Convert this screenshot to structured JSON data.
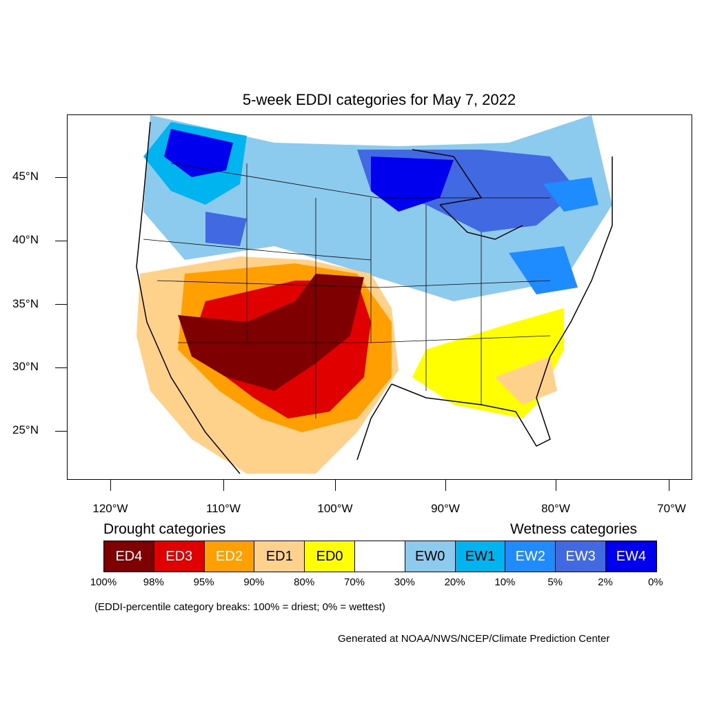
{
  "title": "5-week EDDI categories for May 7, 2022",
  "map": {
    "lat_labels": [
      "45°N",
      "40°N",
      "35°N",
      "30°N",
      "25°N"
    ],
    "lon_labels": [
      "120°W",
      "110°W",
      "100°W",
      "90°W",
      "80°W",
      "70°W"
    ]
  },
  "legend": {
    "drought_heading": "Drought categories",
    "wetness_heading": "Wetness categories",
    "categories": [
      {
        "label": "ED4",
        "color": "#7f0000",
        "text_color": "#ffffff"
      },
      {
        "label": "ED3",
        "color": "#e00000",
        "text_color": "#ffffff"
      },
      {
        "label": "ED2",
        "color": "#ff9f00",
        "text_color": "#ffffff"
      },
      {
        "label": "ED1",
        "color": "#ffd28c",
        "text_color": "#000000"
      },
      {
        "label": "ED0",
        "color": "#ffff00",
        "text_color": "#000000"
      },
      {
        "label": "",
        "color": "#ffffff",
        "text_color": "#000000"
      },
      {
        "label": "EW0",
        "color": "#8ccbed",
        "text_color": "#000000"
      },
      {
        "label": "EW1",
        "color": "#00b4f0",
        "text_color": "#000000"
      },
      {
        "label": "EW2",
        "color": "#1e8cff",
        "text_color": "#ffffff"
      },
      {
        "label": "EW3",
        "color": "#4169e1",
        "text_color": "#ffffff"
      },
      {
        "label": "EW4",
        "color": "#0000ee",
        "text_color": "#ffffff"
      }
    ],
    "percent_breaks": [
      "100%",
      "98%",
      "95%",
      "90%",
      "80%",
      "70%",
      "30%",
      "20%",
      "10%",
      "5%",
      "2%",
      "0%"
    ]
  },
  "note": "(EDDI-percentile category breaks: 100% = driest; 0% = wettest)",
  "credit": "Generated at NOAA/NWS/NCEP/Climate Prediction Center"
}
